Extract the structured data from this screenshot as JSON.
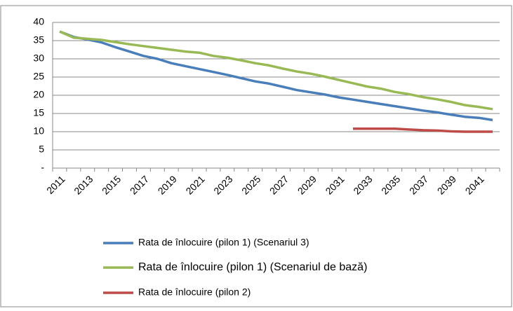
{
  "chart_data": {
    "type": "line",
    "categories": [
      "2011",
      null,
      "2013",
      null,
      "2015",
      null,
      "2017",
      null,
      "2019",
      null,
      "2021",
      null,
      "2023",
      null,
      "2025",
      null,
      "2027",
      null,
      "2029",
      null,
      "2031",
      null,
      "2033",
      null,
      "2035",
      null,
      "2037",
      null,
      "2039",
      null,
      "2041",
      null
    ],
    "series": [
      {
        "name": "Rata de înlocuire (pilon 1) (Scenariul 3)",
        "color": "#4a7ebb",
        "values": [
          37.5,
          36,
          35.3,
          34.5,
          33.2,
          32,
          30.8,
          30,
          28.8,
          28,
          27.2,
          26.4,
          25.6,
          24.7,
          23.8,
          23.2,
          22.3,
          21.4,
          20.8,
          20.2,
          19.4,
          18.8,
          18.2,
          17.6,
          17,
          16.4,
          15.8,
          15.3,
          14.7,
          14.1,
          13.8,
          13.2
        ]
      },
      {
        "name": "Rata de înlocuire (pilon 1) (Scenariul de bază)",
        "color": "#98b954",
        "values": [
          37.5,
          35.8,
          35.5,
          35.2,
          34.6,
          34,
          33.5,
          33,
          32.5,
          32,
          31.7,
          30.8,
          30.3,
          29.6,
          28.8,
          28.2,
          27.3,
          26.5,
          25.9,
          25.1,
          24.2,
          23.3,
          22.4,
          21.8,
          20.9,
          20.3,
          19.5,
          18.9,
          18.2,
          17.3,
          16.8,
          16.2
        ]
      },
      {
        "name": "Rata de înlocuire (pilon 2)",
        "color": "#be4b48",
        "values": [
          null,
          null,
          null,
          null,
          null,
          null,
          null,
          null,
          null,
          null,
          null,
          null,
          null,
          null,
          null,
          null,
          null,
          null,
          null,
          null,
          null,
          10.8,
          10.8,
          10.8,
          10.8,
          10.6,
          10.4,
          10.3,
          10.1,
          10,
          10,
          10
        ]
      }
    ],
    "ylim": [
      0,
      40
    ],
    "yticks": [
      {
        "value": 0,
        "label": "-"
      },
      5,
      10,
      15,
      20,
      25,
      30,
      35,
      40
    ],
    "grid": true
  }
}
